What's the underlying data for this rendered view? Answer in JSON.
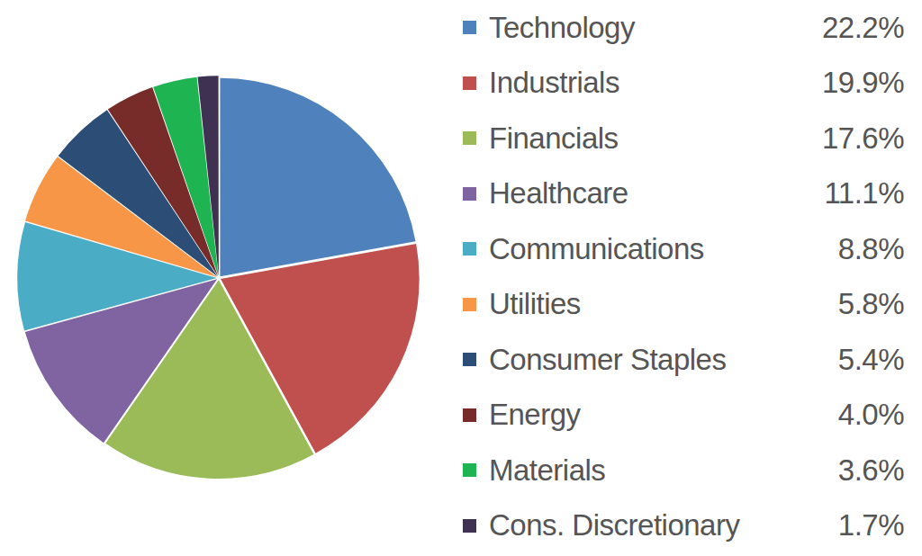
{
  "chart_data": {
    "type": "pie",
    "categories": [
      "Technology",
      "Industrials",
      "Financials",
      "Healthcare",
      "Communications",
      "Utilities",
      "Consumer Staples",
      "Energy",
      "Materials",
      "Cons. Discretionary"
    ],
    "values": [
      22.2,
      19.9,
      17.6,
      11.1,
      8.8,
      5.8,
      5.4,
      4.0,
      3.6,
      1.7
    ],
    "value_labels": [
      "22.2%",
      "19.9%",
      "17.6%",
      "11.1%",
      "8.8%",
      "5.8%",
      "5.4%",
      "4.0%",
      "3.6%",
      "1.7%"
    ],
    "colors": [
      "#4f81bd",
      "#c0504d",
      "#9bbb59",
      "#8064a2",
      "#4bacc6",
      "#f79646",
      "#2c4d75",
      "#772c2a",
      "#1fb452",
      "#3f3151"
    ],
    "legend": "right"
  }
}
